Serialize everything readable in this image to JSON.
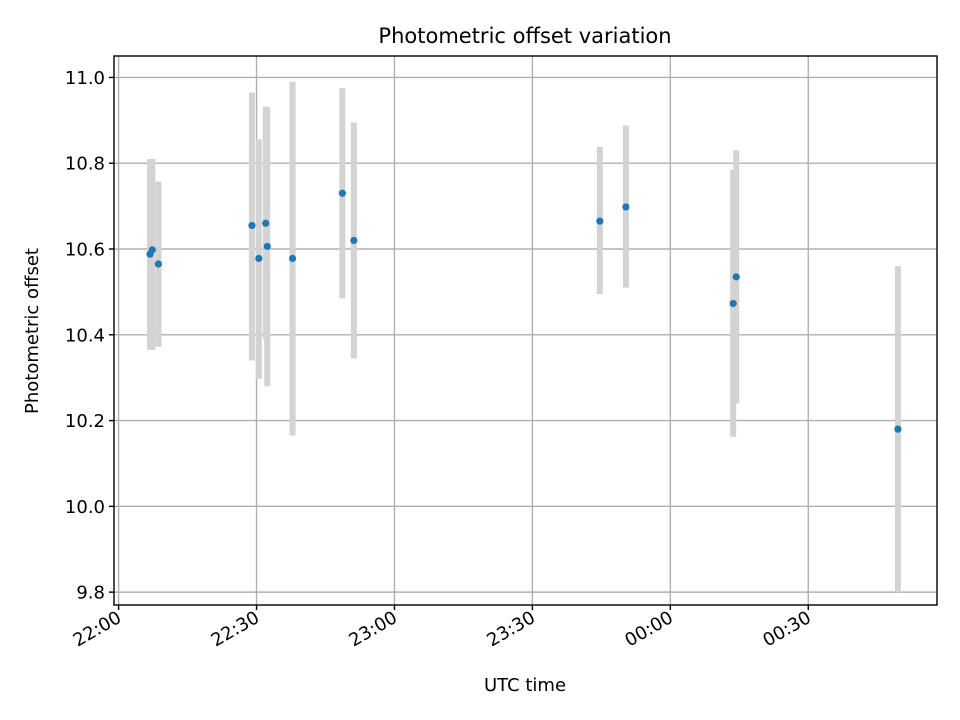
{
  "chart_data": {
    "type": "scatter",
    "title": "Photometric offset variation",
    "xlabel": "UTC time",
    "ylabel": "Photometric offset",
    "x_ticks": [
      {
        "value": "2023-01-01T22:00",
        "label": "22:00"
      },
      {
        "value": "2023-01-01T22:30",
        "label": "22:30"
      },
      {
        "value": "2023-01-01T23:00",
        "label": "23:00"
      },
      {
        "value": "2023-01-01T23:30",
        "label": "23:30"
      },
      {
        "value": "2023-01-02T00:00",
        "label": "00:00"
      },
      {
        "value": "2023-01-02T00:30",
        "label": "00:30"
      }
    ],
    "xlim": [
      "2023-01-01T21:59",
      "2023-01-02T00:58"
    ],
    "y_ticks": [
      9.8,
      10.0,
      10.2,
      10.4,
      10.6,
      10.8,
      11.0
    ],
    "ylim": [
      9.77,
      11.05
    ],
    "grid": true,
    "marker_color": "#1f77b4",
    "errorbar_color": "#d3d3d3",
    "points": [
      {
        "x": "2023-01-01T22:06:50",
        "y": 10.588,
        "lo": 10.365,
        "hi": 10.81
      },
      {
        "x": "2023-01-01T22:07:20",
        "y": 10.598,
        "lo": 10.365,
        "hi": 10.81
      },
      {
        "x": "2023-01-01T22:08:40",
        "y": 10.565,
        "lo": 10.372,
        "hi": 10.757
      },
      {
        "x": "2023-01-01T22:29:00",
        "y": 10.655,
        "lo": 10.34,
        "hi": 10.965
      },
      {
        "x": "2023-01-01T22:30:30",
        "y": 10.578,
        "lo": 10.297,
        "hi": 10.856
      },
      {
        "x": "2023-01-01T22:32:00",
        "y": 10.66,
        "lo": 10.39,
        "hi": 10.932
      },
      {
        "x": "2023-01-01T22:32:20",
        "y": 10.606,
        "lo": 10.28,
        "hi": 10.93
      },
      {
        "x": "2023-01-01T22:37:50",
        "y": 10.578,
        "lo": 10.165,
        "hi": 10.99
      },
      {
        "x": "2023-01-01T22:48:40",
        "y": 10.73,
        "lo": 10.485,
        "hi": 10.975
      },
      {
        "x": "2023-01-01T22:51:10",
        "y": 10.62,
        "lo": 10.345,
        "hi": 10.895
      },
      {
        "x": "2023-01-01T23:44:40",
        "y": 10.665,
        "lo": 10.495,
        "hi": 10.838
      },
      {
        "x": "2023-01-01T23:50:20",
        "y": 10.698,
        "lo": 10.51,
        "hi": 10.888
      },
      {
        "x": "2023-01-02T00:13:40",
        "y": 10.473,
        "lo": 10.162,
        "hi": 10.785
      },
      {
        "x": "2023-01-02T00:14:20",
        "y": 10.535,
        "lo": 10.24,
        "hi": 10.83
      },
      {
        "x": "2023-01-02T00:49:30",
        "y": 10.18,
        "lo": 9.8,
        "hi": 10.56
      }
    ]
  }
}
